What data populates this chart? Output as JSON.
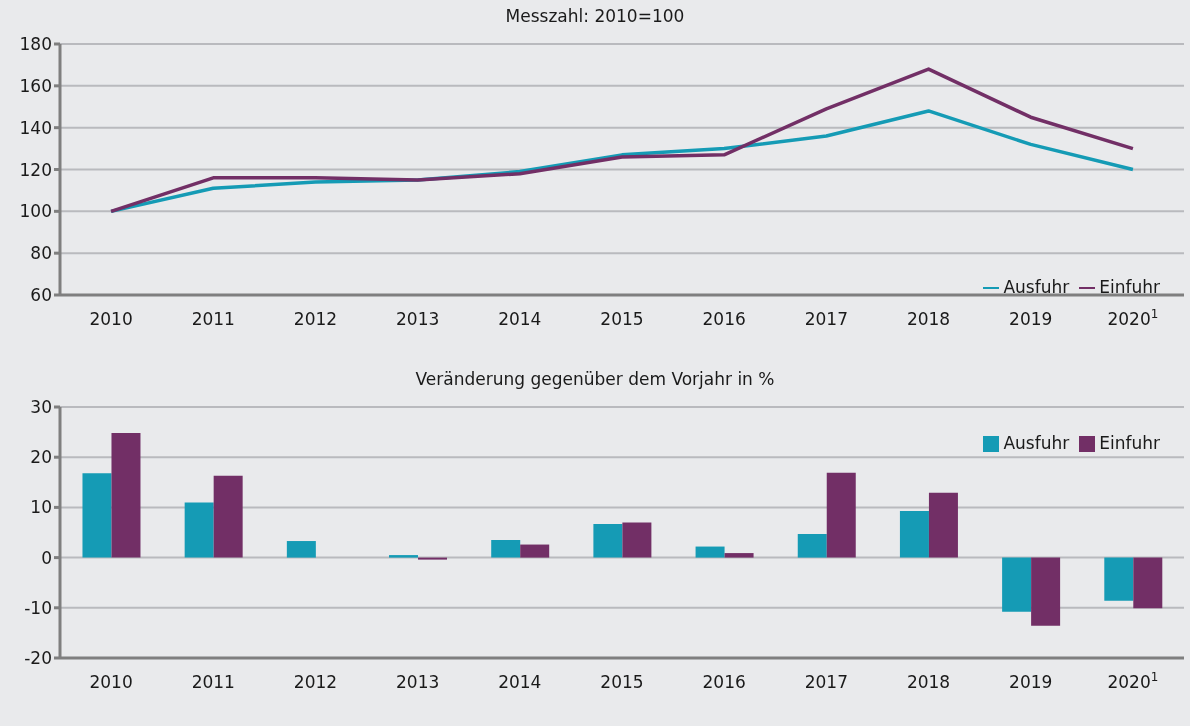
{
  "chart_data": [
    {
      "type": "line",
      "title": "Messzahl: 2010=100",
      "categories": [
        "2010",
        "2011",
        "2012",
        "2013",
        "2014",
        "2015",
        "2016",
        "2017",
        "2018",
        "2019",
        "2020$^{1}$"
      ],
      "series": [
        {
          "name": "Ausfuhr",
          "color": "#159bb5",
          "values": [
            100,
            111,
            114,
            115,
            119,
            127,
            130,
            136,
            148,
            132,
            120
          ]
        },
        {
          "name": "Einfuhr",
          "color": "#722f66",
          "values": [
            100,
            116,
            116,
            115,
            118,
            126,
            127,
            149,
            168,
            145,
            130
          ]
        }
      ],
      "ylim": [
        60,
        180
      ],
      "yticks": [
        60,
        80,
        100,
        120,
        140,
        160,
        180
      ],
      "grid": "y",
      "legend": "bottom right",
      "marker": "none",
      "line_style": "solid"
    },
    {
      "type": "bar",
      "title": "Veränderung gegenüber dem Vorjahr in %",
      "categories": [
        "2010",
        "2011",
        "2012",
        "2013",
        "2014",
        "2015",
        "2016",
        "2017",
        "2018",
        "2019",
        "2020$^{1}$"
      ],
      "series": [
        {
          "name": "Ausfuhr",
          "color": "#159bb5",
          "values": [
            16.8,
            11,
            3.3,
            0.5,
            3.5,
            6.7,
            2.2,
            4.7,
            9.3,
            -10.8,
            -8.6
          ]
        },
        {
          "name": "Einfuhr",
          "color": "#722f66",
          "values": [
            24.8,
            16.3,
            0,
            -0.4,
            2.6,
            7,
            0.9,
            16.9,
            12.9,
            -13.6,
            -10.1
          ]
        }
      ],
      "ylim": [
        -20,
        30
      ],
      "yticks": [
        -20,
        -10,
        0,
        10,
        20,
        30
      ],
      "grid": "y",
      "legend": "top right"
    }
  ]
}
